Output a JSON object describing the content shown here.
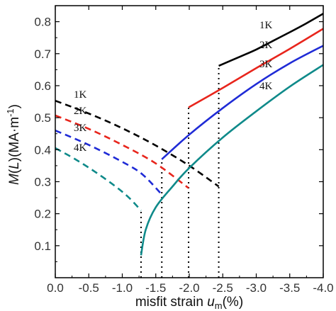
{
  "chart_data": {
    "type": "line",
    "xlabel_parts": [
      "misfit strain ",
      "u",
      "m",
      "(%)"
    ],
    "ylabel_parts": [
      "M",
      "(",
      "L",
      ")(MA·m",
      "-1",
      ")"
    ],
    "xlim": [
      0,
      -4
    ],
    "ylim": [
      0,
      0.85
    ],
    "xticks": [
      0,
      -0.5,
      -1,
      -1.5,
      -2,
      -2.5,
      -3,
      -3.5,
      -4
    ],
    "xtick_labels": [
      "0.0",
      "-0.5",
      "-1.0",
      "-1.5",
      "-2.0",
      "-2.5",
      "-3.0",
      "-3.5",
      "-4.0"
    ],
    "yticks": [
      0.1,
      0.2,
      0.3,
      0.4,
      0.5,
      0.6,
      0.7,
      0.8
    ],
    "ytick_labels": [
      "0.1",
      "0.2",
      "0.3",
      "0.4",
      "0.5",
      "0.6",
      "0.7",
      "0.8"
    ],
    "colors": {
      "1K": "#000000",
      "2K": "#e8251c",
      "3K": "#1f2bd6",
      "4K": "#0f8a8a"
    },
    "series": [
      {
        "name": "1K",
        "color": "#000000",
        "critical_strain": -2.44,
        "low": {
          "x": [
            0,
            -0.5,
            -1.0,
            -1.5,
            -2.0,
            -2.44
          ],
          "y": [
            0.553,
            0.513,
            0.467,
            0.413,
            0.35,
            0.285
          ]
        },
        "high": {
          "x": [
            -2.44,
            -2.75,
            -3.0,
            -3.25,
            -3.5,
            -3.75,
            -4.0
          ],
          "y": [
            0.662,
            0.69,
            0.713,
            0.74,
            0.767,
            0.795,
            0.825
          ]
        }
      },
      {
        "name": "2K",
        "color": "#e8251c",
        "critical_strain": -1.99,
        "low": {
          "x": [
            0,
            -0.5,
            -1.0,
            -1.5,
            -1.99
          ],
          "y": [
            0.507,
            0.465,
            0.415,
            0.357,
            0.28
          ]
        },
        "high": {
          "x": [
            -1.99,
            -2.5,
            -3.0,
            -3.5,
            -4.0
          ],
          "y": [
            0.532,
            0.593,
            0.655,
            0.715,
            0.778
          ]
        }
      },
      {
        "name": "3K",
        "color": "#1f2bd6",
        "critical_strain": -1.59,
        "low": {
          "x": [
            0,
            -0.5,
            -1.0,
            -1.3,
            -1.59
          ],
          "y": [
            0.46,
            0.415,
            0.362,
            0.323,
            0.26
          ]
        },
        "high": {
          "x": [
            -1.59,
            -2.0,
            -2.5,
            -3.0,
            -3.5,
            -4.0
          ],
          "y": [
            0.37,
            0.447,
            0.53,
            0.605,
            0.67,
            0.725
          ]
        }
      },
      {
        "name": "4K",
        "color": "#0f8a8a",
        "critical_strain": -1.28,
        "low": {
          "x": [
            0,
            -0.3,
            -0.6,
            -0.9,
            -1.1,
            -1.28
          ],
          "y": [
            0.405,
            0.37,
            0.33,
            0.285,
            0.25,
            0.21
          ]
        },
        "high": {
          "x": [
            -1.28,
            -1.35,
            -1.5,
            -1.75,
            -2.0,
            -2.5,
            -3.0,
            -3.5,
            -4.0
          ],
          "y": [
            0.07,
            0.15,
            0.22,
            0.285,
            0.343,
            0.438,
            0.52,
            0.597,
            0.665
          ]
        }
      }
    ]
  }
}
